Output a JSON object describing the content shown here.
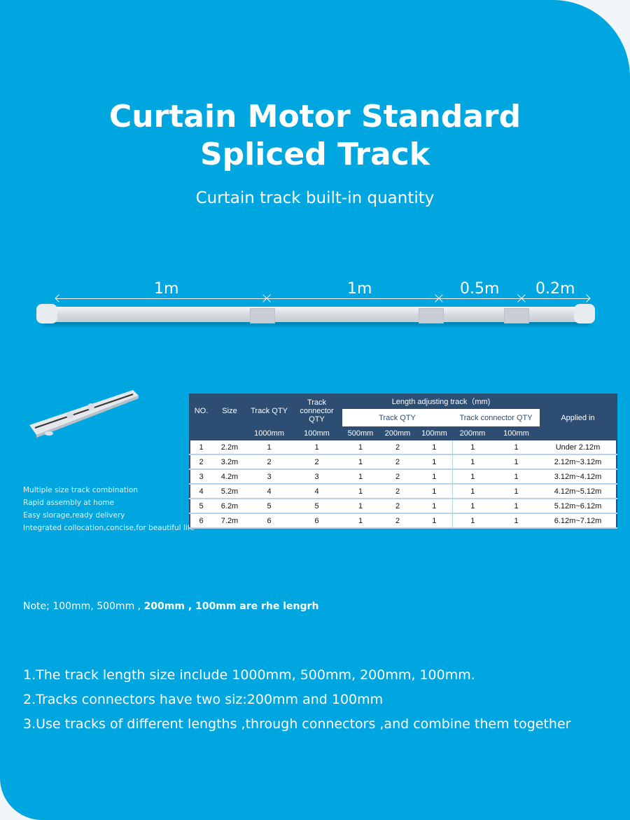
{
  "header": {
    "title_line1": "Curtain Motor Standard",
    "title_line2": "Spliced Track",
    "subtitle": "Curtain track built-in quantity"
  },
  "track_diagram": {
    "segments": [
      "1m",
      "1m",
      "0.5m",
      "0.2m"
    ]
  },
  "features": [
    "Multiple size track combination",
    "Rapid assembly at home",
    "Easy slorage,ready delivery",
    "Integrated collocation,concise,for beautiful life"
  ],
  "table": {
    "headers": {
      "no": "NO.",
      "size": "Size",
      "track_qty": "Track QTY",
      "connector_qty": "Track connector QTY",
      "length_adjusting": "Length adjusting track（mm)",
      "adj_track_qty": "Track QTY",
      "adj_connector_qty": "Track connector QTY",
      "applied": "Applied in"
    },
    "units": [
      "1000mm",
      "100mm",
      "500mm",
      "200mm",
      "100mm",
      "200mm",
      "100mm"
    ],
    "rows": [
      [
        "1",
        "2.2m",
        "1",
        "1",
        "1",
        "2",
        "1",
        "1",
        "1",
        "Under 2.12m"
      ],
      [
        "2",
        "3.2m",
        "2",
        "2",
        "1",
        "2",
        "1",
        "1",
        "1",
        "2.12m~3.12m"
      ],
      [
        "3",
        "4.2m",
        "3",
        "3",
        "1",
        "2",
        "1",
        "1",
        "1",
        "3.12m~4.12m"
      ],
      [
        "4",
        "5.2m",
        "4",
        "4",
        "1",
        "2",
        "1",
        "1",
        "1",
        "4.12m~5.12m"
      ],
      [
        "5",
        "6.2m",
        "5",
        "5",
        "1",
        "2",
        "1",
        "1",
        "1",
        "5.12m~6.12m"
      ],
      [
        "6",
        "7.2m",
        "6",
        "6",
        "1",
        "2",
        "1",
        "1",
        "1",
        "6.12m~7.12m"
      ]
    ]
  },
  "note": {
    "prefix": "Note; 100mm, 500mm ,",
    "bold": "200mm , 100mm are rhe  lengrh"
  },
  "points": [
    "1.The track length size include 1000mm, 500mm, 200mm, 100mm.",
    "2.Tracks connectors have two siz:200mm and 100mm",
    "3.Use tracks of different lengths ,through connectors ,and combine them together"
  ],
  "colors": {
    "background": "#00a6df",
    "table_header": "#2e4d73"
  }
}
